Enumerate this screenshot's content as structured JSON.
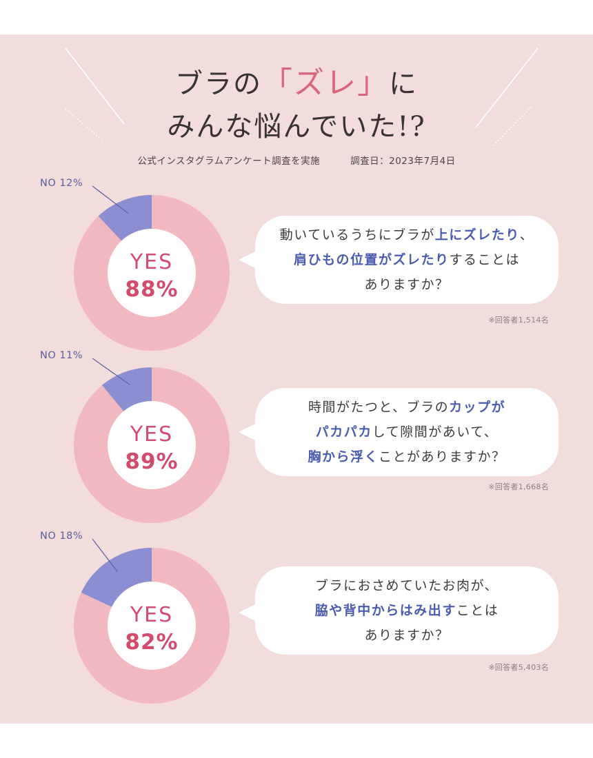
{
  "header": {
    "title_part1": "ブラの",
    "title_open_bracket": "「",
    "title_highlight": "ズレ",
    "title_close_bracket": "」",
    "title_part2": "に",
    "title_line2": "みんな悩んでいた!?",
    "subtitle_survey": "公式インスタグラムアンケート調査を実施",
    "subtitle_date": "調査日：2023年7月4日"
  },
  "colors": {
    "panel": "#f3dcdc",
    "yes": "#f2b8c0",
    "no": "#8b8fd1",
    "yes_text": "#d24a6c",
    "accent_text": "#4a5bb0",
    "no_text": "#5b5e9e"
  },
  "chart_data": [
    {
      "type": "pie",
      "categories": [
        "YES",
        "NO"
      ],
      "values": [
        88,
        12
      ],
      "labels": {
        "yes": "YES",
        "yes_pct": "88%",
        "no": "NO 12%"
      },
      "question": [
        [
          {
            "t": "動いているうちにブラが",
            "em": false
          },
          {
            "t": "上にズレたり",
            "em": true
          },
          {
            "t": "、",
            "em": false
          }
        ],
        [
          {
            "t": "肩ひもの位置がズレたり",
            "em": true
          },
          {
            "t": "することは",
            "em": false
          }
        ],
        [
          {
            "t": "ありますか？",
            "em": false
          }
        ]
      ],
      "note": "※回答者1,514名"
    },
    {
      "type": "pie",
      "categories": [
        "YES",
        "NO"
      ],
      "values": [
        89,
        11
      ],
      "labels": {
        "yes": "YES",
        "yes_pct": "89%",
        "no": "NO 11%"
      },
      "question": [
        [
          {
            "t": "時間がたつと、ブラの",
            "em": false
          },
          {
            "t": "カップが",
            "em": true
          }
        ],
        [
          {
            "t": "パカパカ",
            "em": true
          },
          {
            "t": "して隙間があいて、",
            "em": false
          }
        ],
        [
          {
            "t": "胸から浮く",
            "em": true
          },
          {
            "t": "ことがありますか？",
            "em": false
          }
        ]
      ],
      "note": "※回答者1,668名"
    },
    {
      "type": "pie",
      "categories": [
        "YES",
        "NO"
      ],
      "values": [
        82,
        18
      ],
      "labels": {
        "yes": "YES",
        "yes_pct": "82%",
        "no": "NO 18%"
      },
      "question": [
        [
          {
            "t": "ブラにおさめていたお肉が、",
            "em": false
          }
        ],
        [
          {
            "t": "脇や背中からはみ出す",
            "em": true
          },
          {
            "t": "ことは",
            "em": false
          }
        ],
        [
          {
            "t": "ありますか？",
            "em": false
          }
        ]
      ],
      "note": "※回答者5,403名"
    }
  ]
}
